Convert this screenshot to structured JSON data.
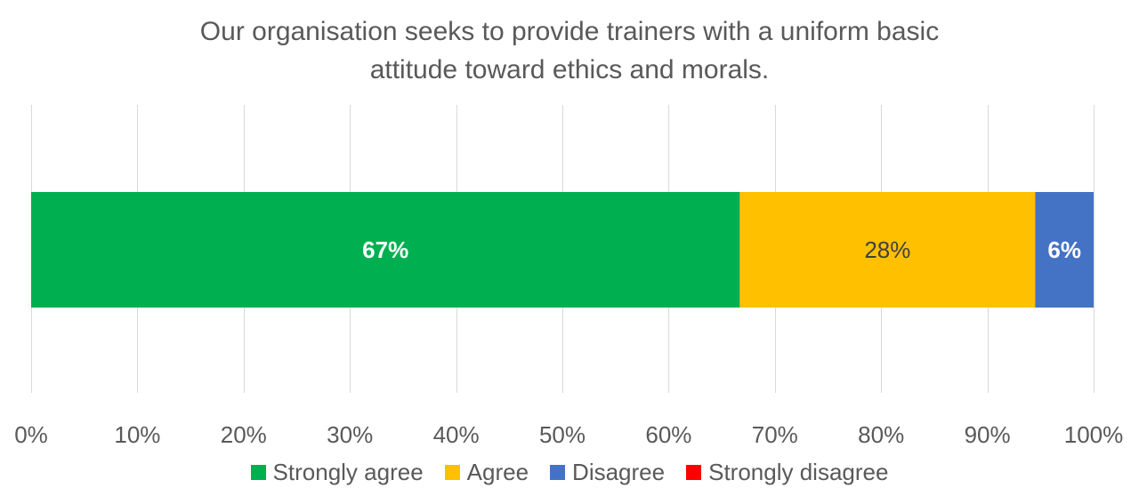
{
  "chart_data": {
    "type": "bar",
    "orientation": "horizontal-stacked-100",
    "title": "Our organisation seeks to provide trainers with a uniform basic attitude toward ethics and morals.",
    "title_lines": [
      "Our organisation seeks to provide trainers with a uniform basic",
      "attitude toward ethics and morals."
    ],
    "categories": [
      ""
    ],
    "xlim": [
      0,
      100
    ],
    "x_ticks": [
      "0%",
      "10%",
      "20%",
      "30%",
      "40%",
      "50%",
      "60%",
      "70%",
      "80%",
      "90%",
      "100%"
    ],
    "grid": "vertical",
    "legend_position": "bottom",
    "series": [
      {
        "name": "Strongly agree",
        "values": [
          66.7
        ],
        "label": "67%",
        "color": "#00B050",
        "label_color": "#ffffff",
        "label_bold": true
      },
      {
        "name": "Agree",
        "values": [
          27.8
        ],
        "label": "28%",
        "color": "#FFC000",
        "label_color": "#404040",
        "label_bold": false
      },
      {
        "name": "Disagree",
        "values": [
          5.5
        ],
        "label": "6%",
        "color": "#4472C4",
        "label_color": "#ffffff",
        "label_bold": true
      },
      {
        "name": "Strongly disagree",
        "values": [
          0
        ],
        "label": "",
        "color": "#FF0000",
        "label_color": "#ffffff",
        "label_bold": true
      }
    ]
  }
}
